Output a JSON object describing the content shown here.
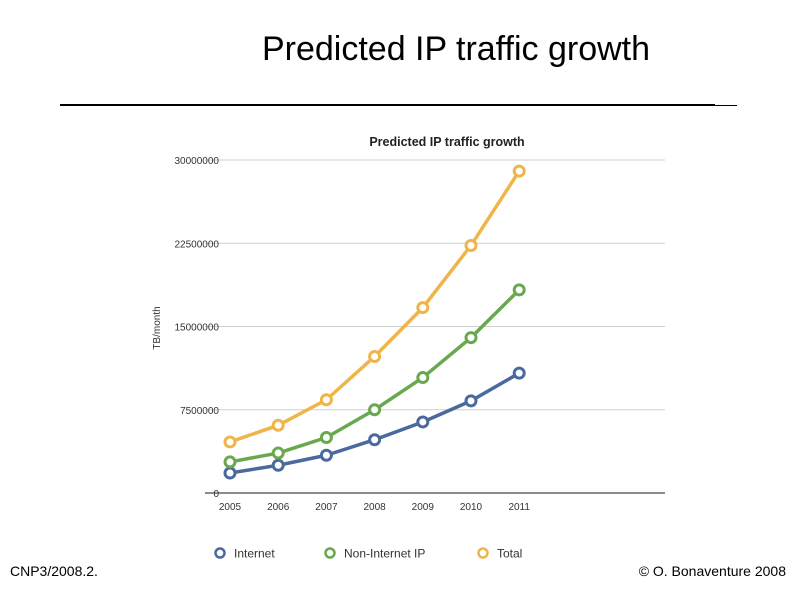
{
  "slide": {
    "title": "Predicted IP traffic growth",
    "footer_left": "CNP3/2008.2.",
    "footer_right": "© O. Bonaventure 2008"
  },
  "chart_data": {
    "type": "line",
    "title": "Predicted IP traffic growth",
    "xlabel": "",
    "ylabel": "TB/month",
    "categories": [
      "2005",
      "2006",
      "2007",
      "2008",
      "2009",
      "2010",
      "2011"
    ],
    "ylim": [
      0,
      30000000
    ],
    "yticks": [
      0,
      7500000,
      15000000,
      22500000,
      30000000
    ],
    "ytick_labels": [
      "0",
      "7500000",
      "15000000",
      "22500000",
      "30000000"
    ],
    "grid": true,
    "legend_position": "bottom",
    "series": [
      {
        "name": "Internet",
        "color": "#4a6a9e",
        "values": [
          1800000,
          2500000,
          3400000,
          4800000,
          6400000,
          8300000,
          10800000
        ]
      },
      {
        "name": "Non-Internet IP",
        "color": "#6aa84f",
        "values": [
          2800000,
          3600000,
          5000000,
          7500000,
          10400000,
          14000000,
          18300000
        ]
      },
      {
        "name": "Total",
        "color": "#f0b54a",
        "values": [
          4600000,
          6100000,
          8400000,
          12300000,
          16700000,
          22300000,
          29000000
        ]
      }
    ]
  }
}
